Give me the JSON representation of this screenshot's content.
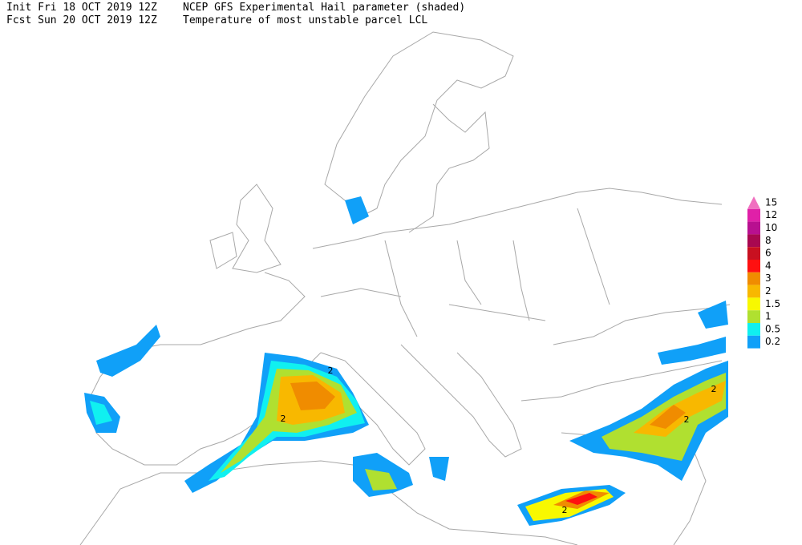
{
  "header": {
    "init": "Init  Fri 18 OCT 2019 12Z",
    "fcst": "Fcst Sun 20 OCT 2019 12Z",
    "title": "NCEP GFS Experimental Hail parameter (shaded)",
    "subtitle": "Temperature of most unstable parcel LCL"
  },
  "legend": {
    "levels": [
      {
        "label": "15",
        "color": "#f070c0"
      },
      {
        "label": "12",
        "color": "#e020a8"
      },
      {
        "label": "10",
        "color": "#b81090"
      },
      {
        "label": "8",
        "color": "#a80850"
      },
      {
        "label": "6",
        "color": "#c81020"
      },
      {
        "label": "4",
        "color": "#ff1010"
      },
      {
        "label": "3",
        "color": "#f08c00"
      },
      {
        "label": "2",
        "color": "#f8b800"
      },
      {
        "label": "1.5",
        "color": "#f8f800"
      },
      {
        "label": "1",
        "color": "#b0e030"
      },
      {
        "label": "0.5",
        "color": "#10f0f0"
      },
      {
        "label": "0.2",
        "color": "#10a0f8"
      }
    ]
  },
  "contour_labels": [
    "2",
    "2",
    "2",
    "2",
    "2"
  ]
}
